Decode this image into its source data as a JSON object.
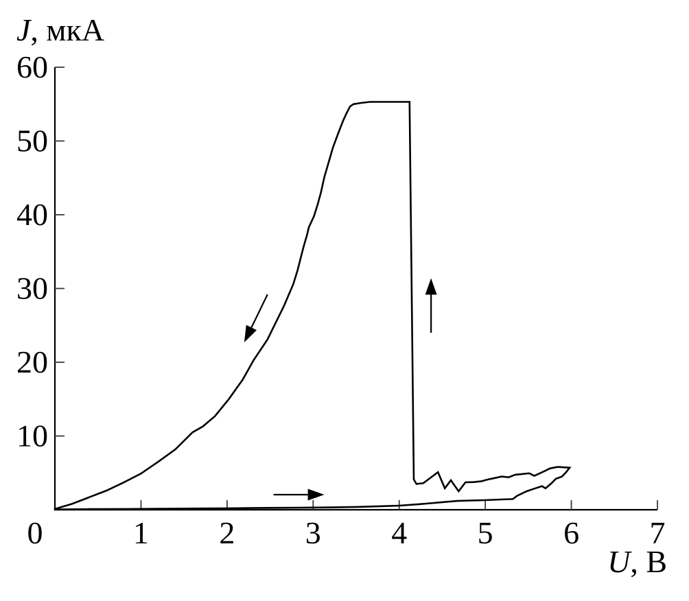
{
  "page": {
    "background": "#ffffff"
  },
  "chart_data": {
    "type": "line",
    "title": "",
    "description": "Current-voltage hysteresis loop with abrupt switching jump",
    "xlabel": "U, В",
    "xlabel_var": "U",
    "xlabel_rest": ", В",
    "ylabel": "J, мкА",
    "ylabel_var": "J",
    "ylabel_rest": ", мкА",
    "xlim": [
      0,
      7
    ],
    "ylim": [
      0,
      60
    ],
    "xticks": [
      0,
      1,
      2,
      3,
      4,
      5,
      6,
      7
    ],
    "yticks": [
      10,
      20,
      30,
      40,
      50,
      60
    ],
    "origin_label": "0",
    "grid": false,
    "legend": "none",
    "axis_color": "#000000",
    "tick_color": "#3a3a3a",
    "line_color": "#000000",
    "series": [
      {
        "name": "forward-sweep-low-branch",
        "direction": "U increasing, lower branch near zero current",
        "points": [
          [
            0.0,
            0.05
          ],
          [
            0.4,
            0.08
          ],
          [
            0.8,
            0.1
          ],
          [
            1.2,
            0.13
          ],
          [
            1.6,
            0.17
          ],
          [
            2.0,
            0.2
          ],
          [
            2.4,
            0.25
          ],
          [
            2.8,
            0.28
          ],
          [
            3.2,
            0.32
          ],
          [
            3.5,
            0.38
          ],
          [
            3.8,
            0.48
          ],
          [
            4.0,
            0.56
          ],
          [
            4.23,
            0.75
          ],
          [
            4.41,
            0.93
          ],
          [
            4.68,
            1.2
          ],
          [
            4.99,
            1.3
          ],
          [
            5.19,
            1.4
          ],
          [
            5.32,
            1.45
          ],
          [
            5.37,
            1.9
          ],
          [
            5.48,
            2.5
          ],
          [
            5.58,
            2.9
          ],
          [
            5.66,
            3.2
          ],
          [
            5.7,
            2.9
          ],
          [
            5.77,
            3.6
          ],
          [
            5.82,
            4.2
          ],
          [
            5.89,
            4.5
          ],
          [
            5.94,
            5.1
          ],
          [
            5.98,
            5.7
          ]
        ]
      },
      {
        "name": "reverse-sweep-switch-branch",
        "direction": "U decreasing: noisy low branch, jump up at U≈4.15 to J≈55, plateau, then smooth decay to origin",
        "points": [
          [
            5.98,
            5.7
          ],
          [
            5.84,
            5.8
          ],
          [
            5.75,
            5.6
          ],
          [
            5.69,
            5.25
          ],
          [
            5.57,
            4.6
          ],
          [
            5.51,
            4.95
          ],
          [
            5.43,
            4.85
          ],
          [
            5.35,
            4.75
          ],
          [
            5.27,
            4.4
          ],
          [
            5.19,
            4.5
          ],
          [
            5.11,
            4.3
          ],
          [
            5.03,
            4.1
          ],
          [
            4.95,
            3.85
          ],
          [
            4.86,
            3.75
          ],
          [
            4.77,
            3.72
          ],
          [
            4.69,
            2.5
          ],
          [
            4.6,
            4.0
          ],
          [
            4.53,
            2.9
          ],
          [
            4.45,
            5.1
          ],
          [
            4.28,
            3.6
          ],
          [
            4.2,
            3.5
          ],
          [
            4.17,
            4.1
          ],
          [
            4.12,
            55.3
          ],
          [
            3.66,
            55.3
          ],
          [
            3.55,
            55.15
          ],
          [
            3.47,
            55.0
          ],
          [
            3.43,
            54.7
          ],
          [
            3.39,
            53.8
          ],
          [
            3.35,
            52.8
          ],
          [
            3.3,
            51.3
          ],
          [
            3.23,
            49.1
          ],
          [
            3.17,
            46.7
          ],
          [
            3.13,
            45.1
          ],
          [
            3.09,
            43.0
          ],
          [
            3.05,
            41.3
          ],
          [
            3.01,
            39.8
          ],
          [
            2.95,
            38.3
          ],
          [
            2.93,
            37.3
          ],
          [
            2.89,
            35.7
          ],
          [
            2.85,
            33.9
          ],
          [
            2.82,
            32.5
          ],
          [
            2.77,
            30.6
          ],
          [
            2.66,
            27.6
          ],
          [
            2.55,
            25.0
          ],
          [
            2.47,
            23.1
          ],
          [
            2.39,
            21.7
          ],
          [
            2.31,
            20.3
          ],
          [
            2.18,
            17.6
          ],
          [
            2.13,
            16.8
          ],
          [
            2.02,
            15.0
          ],
          [
            1.86,
            12.7
          ],
          [
            1.72,
            11.3
          ],
          [
            1.6,
            10.5
          ],
          [
            1.4,
            8.2
          ],
          [
            1.2,
            6.5
          ],
          [
            1.0,
            4.9
          ],
          [
            0.8,
            3.7
          ],
          [
            0.6,
            2.6
          ],
          [
            0.4,
            1.7
          ],
          [
            0.2,
            0.8
          ],
          [
            0.0,
            0.1
          ]
        ]
      }
    ],
    "annotations": {
      "arrows": [
        {
          "name": "forward-direction-arrow",
          "from": [
            2.54,
            2.05
          ],
          "to": [
            3.13,
            2.05
          ]
        },
        {
          "name": "jump-up-arrow",
          "from": [
            4.37,
            24.0
          ],
          "to": [
            4.37,
            31.4
          ]
        },
        {
          "name": "reverse-direction-arrow",
          "from": [
            2.47,
            29.2
          ],
          "to": [
            2.2,
            22.7
          ]
        }
      ]
    }
  }
}
